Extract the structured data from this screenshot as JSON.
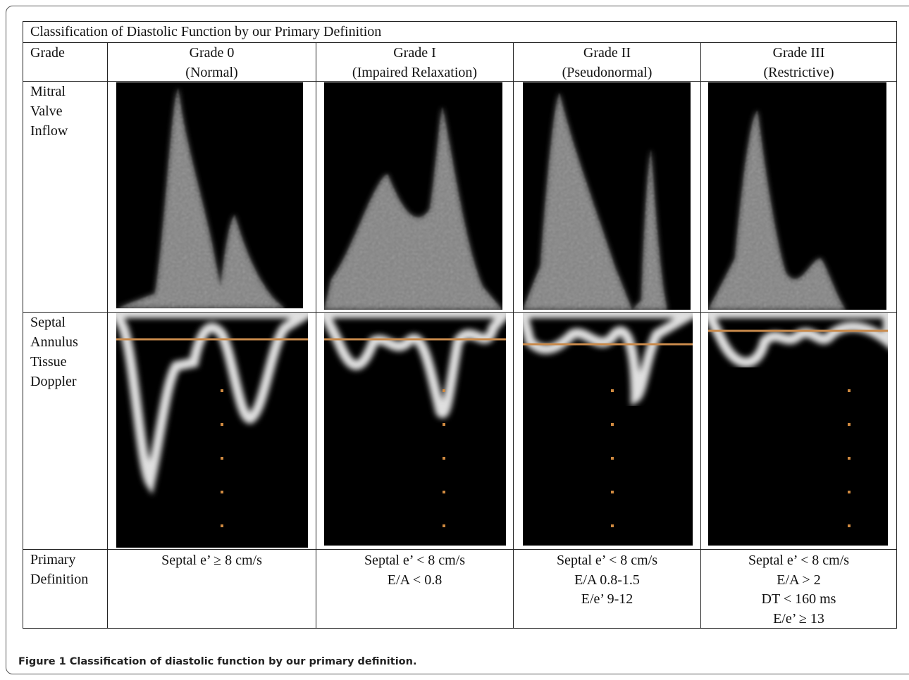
{
  "table": {
    "title": "Classification of Diastolic Function by our Primary Definition",
    "row_labels": [
      [
        "Grade"
      ],
      [
        "Mitral",
        "Valve",
        "Inflow"
      ],
      [
        "Septal",
        "Annulus",
        "Tissue",
        "Doppler"
      ],
      [
        "Primary",
        "Definition"
      ]
    ],
    "columns": [
      {
        "grade": "Grade 0",
        "desc": "(Normal)",
        "definition": [
          "Septal e’ ≥ 8 cm/s"
        ]
      },
      {
        "grade": "Grade I",
        "desc": "(Impaired Relaxation)",
        "definition": [
          "Septal e’ < 8 cm/s",
          "E/A < 0.8"
        ]
      },
      {
        "grade": "Grade II",
        "desc": "(Pseudonormal)",
        "definition": [
          "Septal e’ < 8 cm/s",
          "E/A 0.8-1.5",
          "E/e’ 9-12"
        ]
      },
      {
        "grade": "Grade III",
        "desc": "(Restrictive)",
        "definition": [
          "Septal e’ < 8 cm/s",
          "E/A > 2",
          "DT < 160 ms",
          "E/e’ ≥ 13"
        ]
      }
    ]
  },
  "caption": {
    "label": "Figure 1",
    "text": "Classification of diastolic function by our primary definition."
  }
}
